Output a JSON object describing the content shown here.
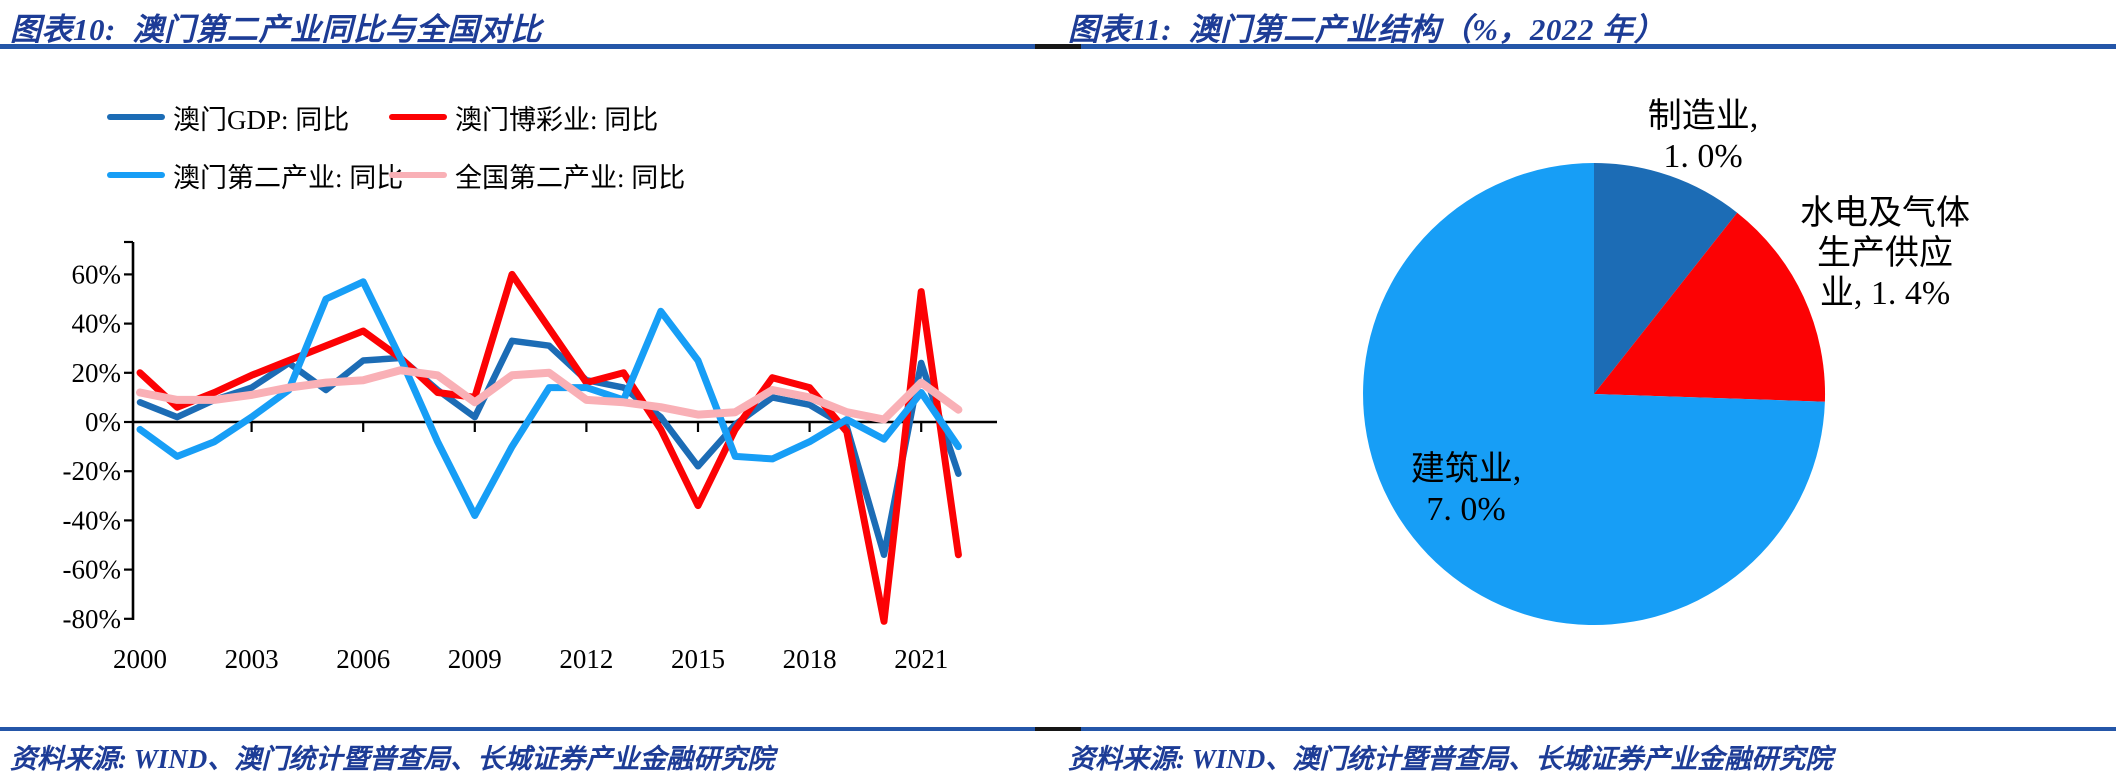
{
  "styles": {
    "title_color": "#1d3c96",
    "rule_blue": "#2456a8",
    "rule_black": "#161616",
    "axis_color": "#000000"
  },
  "left_panel": {
    "title": "图表10:  澳门第二产业同比与全国对比",
    "source": "资料来源: WIND、澳门统计暨普查局、长城证券产业金融研究院",
    "chart_data": {
      "type": "line",
      "x": [
        2000,
        2001,
        2002,
        2003,
        2004,
        2005,
        2006,
        2007,
        2008,
        2009,
        2010,
        2011,
        2012,
        2013,
        2014,
        2015,
        2016,
        2017,
        2018,
        2019,
        2020,
        2021,
        2022
      ],
      "x_tick_labels": [
        "2000",
        "2003",
        "2006",
        "2009",
        "2012",
        "2015",
        "2018",
        "2021"
      ],
      "x_tick_years": [
        2000,
        2003,
        2006,
        2009,
        2012,
        2015,
        2018,
        2021
      ],
      "yticks": [
        60,
        40,
        20,
        0,
        -20,
        -40,
        -60,
        -80
      ],
      "ytick_labels": [
        "60%",
        "40%",
        "20%",
        "0%",
        "-20%",
        "-40%",
        "-60%",
        "-80%"
      ],
      "ylim": [
        -85,
        73
      ],
      "grid": false,
      "legend_position": "top",
      "series": [
        {
          "name": "澳门GDP: 同比",
          "color": "#1c6cb5",
          "values": [
            8,
            2,
            9,
            14,
            24,
            13,
            25,
            26,
            13,
            2,
            33,
            31,
            17,
            14,
            2,
            -18,
            -1,
            10,
            7,
            -2,
            -54,
            24,
            -21
          ]
        },
        {
          "name": "澳门博彩业: 同比",
          "color": "#fc0204",
          "values": [
            20,
            6,
            12,
            19,
            25,
            31,
            37,
            26,
            12,
            10,
            60,
            38,
            16,
            20,
            -3,
            -34,
            -3,
            18,
            14,
            -4,
            -81,
            53,
            -54
          ]
        },
        {
          "name": "澳门第二产业: 同比",
          "color": "#179ef6",
          "values": [
            -3,
            -14,
            -8,
            2,
            13,
            50,
            57,
            26,
            -8,
            -38,
            -10,
            14,
            14,
            9,
            45,
            25,
            -14,
            -15,
            -8,
            1,
            -7,
            12,
            -10
          ]
        },
        {
          "name": "全国第二产业: 同比",
          "color": "#f9b0b6",
          "values": [
            12,
            9,
            9,
            11,
            14,
            16,
            17,
            21,
            19,
            8,
            19,
            20,
            9,
            8,
            6,
            3,
            4,
            13,
            10,
            4,
            1,
            16,
            5
          ]
        }
      ]
    }
  },
  "right_panel": {
    "title": "图表11:  澳门第二产业结构（%，2022 年）",
    "source": "资料来源: WIND、澳门统计暨普查局、长城证券产业金融研究院",
    "chart_data": {
      "type": "pie",
      "start_angle_deg": 0,
      "clockwise": true,
      "slices": [
        {
          "label": "制造业",
          "value": 1.0,
          "color": "#1c6cb5",
          "label_lines": [
            "制造业,",
            "1. 0%"
          ]
        },
        {
          "label": "水电及气体生产供应业",
          "value": 1.4,
          "color": "#fc0204",
          "label_lines": [
            "水电及气体",
            "生产供应",
            "业, 1. 4%"
          ]
        },
        {
          "label": "建筑业",
          "value": 7.0,
          "color": "#179ef6",
          "label_lines": [
            "建筑业,",
            "7. 0%"
          ]
        }
      ]
    }
  }
}
